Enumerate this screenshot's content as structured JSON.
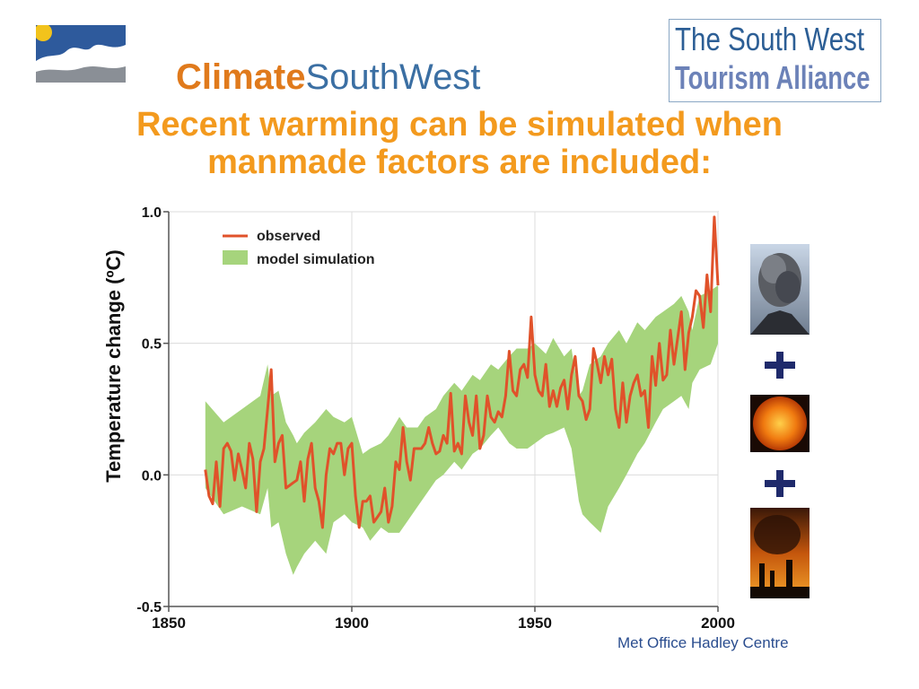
{
  "header": {
    "logo_left_part1": "Climate",
    "logo_left_part2": "SouthWest",
    "logo_right_line1": "The South West",
    "logo_right_line2": "Tourism Alliance"
  },
  "headline": {
    "line1": "Recent warming can be simulated when",
    "line2": "manmade factors are included:"
  },
  "credit": "Met Office Hadley Centre",
  "side_images": {
    "items": [
      "volcano-eruption-icon",
      "sun-icon",
      "industrial-smoke-icon"
    ],
    "separator": "+"
  },
  "colors": {
    "observed": "#e0522a",
    "model": "#a6d47c",
    "headline": "#f39a1e",
    "credit": "#2a4d8f"
  },
  "chart_data": {
    "type": "line",
    "ylabel": "Temperature change (ºC)",
    "xlabel": "",
    "xlim": [
      1850,
      2000
    ],
    "ylim": [
      -0.5,
      1.0
    ],
    "xticks": [
      "1850",
      "1900",
      "1950",
      "2000"
    ],
    "yticks": [
      "-0.5",
      "0.0",
      "0.5",
      "1.0"
    ],
    "legend_position": "top-left",
    "series": [
      {
        "name": "observed",
        "x": [
          1860,
          1861,
          1862,
          1863,
          1864,
          1865,
          1866,
          1867,
          1868,
          1869,
          1870,
          1871,
          1872,
          1873,
          1874,
          1875,
          1876,
          1877,
          1878,
          1879,
          1880,
          1881,
          1882,
          1883,
          1884,
          1885,
          1886,
          1887,
          1888,
          1889,
          1890,
          1891,
          1892,
          1893,
          1894,
          1895,
          1896,
          1897,
          1898,
          1899,
          1900,
          1901,
          1902,
          1903,
          1904,
          1905,
          1906,
          1907,
          1908,
          1909,
          1910,
          1911,
          1912,
          1913,
          1914,
          1915,
          1916,
          1917,
          1918,
          1919,
          1920,
          1921,
          1922,
          1923,
          1924,
          1925,
          1926,
          1927,
          1928,
          1929,
          1930,
          1931,
          1932,
          1933,
          1934,
          1935,
          1936,
          1937,
          1938,
          1939,
          1940,
          1941,
          1942,
          1943,
          1944,
          1945,
          1946,
          1947,
          1948,
          1949,
          1950,
          1951,
          1952,
          1953,
          1954,
          1955,
          1956,
          1957,
          1958,
          1959,
          1960,
          1961,
          1962,
          1963,
          1964,
          1965,
          1966,
          1967,
          1968,
          1969,
          1970,
          1971,
          1972,
          1973,
          1974,
          1975,
          1976,
          1977,
          1978,
          1979,
          1980,
          1981,
          1982,
          1983,
          1984,
          1985,
          1986,
          1987,
          1988,
          1989,
          1990,
          1991,
          1992,
          1993,
          1994,
          1995,
          1996,
          1997,
          1998,
          1999,
          2000
        ],
        "values": [
          0.02,
          -0.08,
          -0.11,
          0.05,
          -0.12,
          0.1,
          0.12,
          0.09,
          -0.02,
          0.08,
          0.02,
          -0.05,
          0.12,
          0.06,
          -0.14,
          0.05,
          0.1,
          0.25,
          0.4,
          0.05,
          0.12,
          0.15,
          -0.05,
          -0.04,
          -0.03,
          -0.02,
          0.05,
          -0.1,
          0.06,
          0.12,
          -0.05,
          -0.1,
          -0.2,
          0.0,
          0.1,
          0.08,
          0.12,
          0.12,
          0.0,
          0.1,
          0.12,
          -0.08,
          -0.2,
          -0.1,
          -0.1,
          -0.08,
          -0.18,
          -0.16,
          -0.14,
          -0.05,
          -0.18,
          -0.12,
          0.05,
          0.02,
          0.18,
          0.05,
          -0.02,
          0.1,
          0.1,
          0.1,
          0.12,
          0.18,
          0.12,
          0.08,
          0.09,
          0.15,
          0.12,
          0.31,
          0.09,
          0.12,
          0.08,
          0.3,
          0.2,
          0.15,
          0.3,
          0.1,
          0.15,
          0.3,
          0.22,
          0.2,
          0.24,
          0.22,
          0.3,
          0.47,
          0.32,
          0.3,
          0.4,
          0.42,
          0.37,
          0.6,
          0.38,
          0.32,
          0.3,
          0.42,
          0.26,
          0.32,
          0.26,
          0.33,
          0.36,
          0.25,
          0.38,
          0.45,
          0.3,
          0.28,
          0.21,
          0.25,
          0.48,
          0.42,
          0.35,
          0.45,
          0.38,
          0.44,
          0.25,
          0.18,
          0.35,
          0.2,
          0.3,
          0.35,
          0.38,
          0.3,
          0.32,
          0.18,
          0.45,
          0.34,
          0.5,
          0.36,
          0.38,
          0.55,
          0.42,
          0.52,
          0.62,
          0.4,
          0.54,
          0.6,
          0.7,
          0.68,
          0.56,
          0.76,
          0.62,
          0.98,
          0.72
        ]
      },
      {
        "name": "model simulation",
        "x": [
          1860,
          1865,
          1870,
          1875,
          1877,
          1878,
          1880,
          1882,
          1884,
          1885,
          1887,
          1890,
          1893,
          1895,
          1898,
          1900,
          1903,
          1905,
          1908,
          1910,
          1913,
          1915,
          1918,
          1920,
          1923,
          1925,
          1928,
          1930,
          1933,
          1935,
          1938,
          1940,
          1943,
          1945,
          1948,
          1950,
          1953,
          1955,
          1958,
          1960,
          1962,
          1963,
          1965,
          1968,
          1970,
          1973,
          1975,
          1978,
          1980,
          1983,
          1985,
          1988,
          1990,
          1992,
          1993,
          1995,
          1998,
          2000
        ],
        "upper": [
          0.28,
          0.2,
          0.25,
          0.3,
          0.42,
          0.3,
          0.32,
          0.2,
          0.15,
          0.12,
          0.16,
          0.2,
          0.25,
          0.22,
          0.2,
          0.22,
          0.08,
          0.1,
          0.12,
          0.15,
          0.22,
          0.18,
          0.18,
          0.22,
          0.25,
          0.3,
          0.35,
          0.32,
          0.38,
          0.36,
          0.42,
          0.4,
          0.45,
          0.48,
          0.48,
          0.5,
          0.46,
          0.52,
          0.45,
          0.48,
          0.3,
          0.32,
          0.42,
          0.45,
          0.5,
          0.55,
          0.5,
          0.58,
          0.55,
          0.6,
          0.62,
          0.65,
          0.68,
          0.62,
          0.55,
          0.68,
          0.7,
          0.72
        ],
        "lower": [
          -0.05,
          -0.15,
          -0.12,
          -0.15,
          -0.05,
          -0.2,
          -0.18,
          -0.3,
          -0.38,
          -0.35,
          -0.3,
          -0.25,
          -0.3,
          -0.18,
          -0.15,
          -0.18,
          -0.2,
          -0.25,
          -0.2,
          -0.22,
          -0.22,
          -0.18,
          -0.12,
          -0.08,
          -0.02,
          0.0,
          0.05,
          0.02,
          0.08,
          0.1,
          0.15,
          0.18,
          0.12,
          0.1,
          0.1,
          0.12,
          0.15,
          0.16,
          0.18,
          0.1,
          -0.1,
          -0.15,
          -0.18,
          -0.22,
          -0.12,
          -0.05,
          0.0,
          0.08,
          0.12,
          0.2,
          0.25,
          0.28,
          0.3,
          0.25,
          0.35,
          0.4,
          0.42,
          0.5
        ]
      }
    ]
  }
}
